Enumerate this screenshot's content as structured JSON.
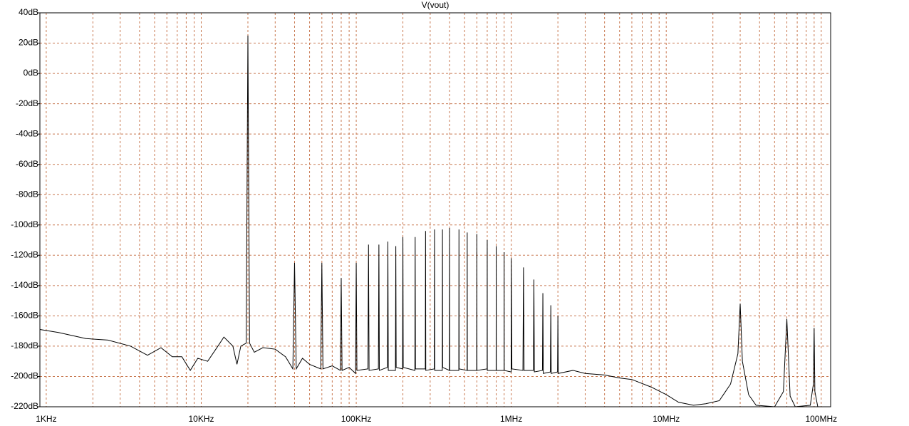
{
  "chart_data": {
    "type": "line",
    "title": "V(vout)",
    "color": "#000000",
    "xscale": "log",
    "grid": true,
    "xlim": [
      910,
      115000000
    ],
    "ylim": [
      -220,
      40
    ],
    "xticks": [
      {
        "value": 1000,
        "label": "1KHz"
      },
      {
        "value": 10000,
        "label": "10KHz"
      },
      {
        "value": 100000,
        "label": "100KHz"
      },
      {
        "value": 1000000,
        "label": "1MHz"
      },
      {
        "value": 10000000,
        "label": "10MHz"
      },
      {
        "value": 100000000,
        "label": "100MHz"
      }
    ],
    "x_minor_ticks": [
      2000,
      3000,
      4000,
      5000,
      6000,
      7000,
      8000,
      9000,
      20000,
      30000,
      40000,
      50000,
      60000,
      70000,
      80000,
      90000,
      200000,
      300000,
      400000,
      500000,
      600000,
      700000,
      800000,
      900000,
      2000000,
      3000000,
      4000000,
      5000000,
      6000000,
      7000000,
      8000000,
      9000000,
      20000000,
      30000000,
      40000000,
      50000000,
      60000000,
      70000000,
      80000000,
      90000000
    ],
    "yticks": [
      {
        "value": 40,
        "label": "40dB"
      },
      {
        "value": 20,
        "label": "20dB"
      },
      {
        "value": 0,
        "label": "0dB"
      },
      {
        "value": -20,
        "label": "-20dB"
      },
      {
        "value": -40,
        "label": "-40dB"
      },
      {
        "value": -60,
        "label": "-60dB"
      },
      {
        "value": -80,
        "label": "-80dB"
      },
      {
        "value": -100,
        "label": "-100dB"
      },
      {
        "value": -120,
        "label": "-120dB"
      },
      {
        "value": -140,
        "label": "-140dB"
      },
      {
        "value": -160,
        "label": "-160dB"
      },
      {
        "value": -180,
        "label": "-180dB"
      },
      {
        "value": -200,
        "label": "-200dB"
      },
      {
        "value": -220,
        "label": "-220dB"
      }
    ],
    "x": [
      910,
      1200,
      1800,
      2500,
      3500,
      4500,
      5500,
      6500,
      7500,
      8500,
      9500,
      11000,
      13000,
      14000,
      16000,
      17000,
      18000,
      19500,
      20000,
      20500,
      22000,
      25000,
      30000,
      35000,
      39000,
      40000,
      41000,
      45000,
      50000,
      59000,
      60000,
      61000,
      70000,
      79000,
      80000,
      81000,
      90000,
      99000,
      100000,
      101000,
      119000,
      120000,
      121000,
      139000,
      140000,
      141000,
      159000,
      160000,
      161000,
      179000,
      180000,
      181000,
      199000,
      200000,
      201000,
      239000,
      240000,
      241000,
      279000,
      280000,
      281000,
      319000,
      320000,
      321000,
      359000,
      360000,
      361000,
      399000,
      400000,
      401000,
      459000,
      460000,
      461000,
      519000,
      520000,
      521000,
      599000,
      600000,
      601000,
      699000,
      700000,
      701000,
      799000,
      800000,
      801000,
      899000,
      900000,
      901000,
      999000,
      1000000,
      1010000,
      1190000,
      1200000,
      1210000,
      1390000,
      1400000,
      1410000,
      1590000,
      1600000,
      1610000,
      1790000,
      1800000,
      1810000,
      1990000,
      2000000,
      2010000,
      2500000,
      3000000,
      4000000,
      5000000,
      6000000,
      8000000,
      10000000,
      12000000,
      15000000,
      18000000,
      22000000,
      26000000,
      29000000,
      30000000,
      31000000,
      34000000,
      38000000,
      50000000,
      57000000,
      60000000,
      63000000,
      68000000,
      85000000,
      89000000,
      90000000,
      91000000,
      95000000,
      114000000
    ],
    "values": [
      -169,
      -171,
      -175,
      -176,
      -180,
      -186,
      -181,
      -187,
      -187,
      -196,
      -188,
      -190,
      -179,
      -174,
      -180,
      -192,
      -180,
      -178,
      25,
      -178,
      -184,
      -181,
      -182,
      -187,
      -195,
      -125,
      -195,
      -188,
      -192,
      -195,
      -125,
      -195,
      -193,
      -196,
      -135,
      -196,
      -194,
      -198,
      -125,
      -196,
      -195,
      -113,
      -196,
      -195,
      -113,
      -196,
      -194,
      -111,
      -196,
      -196,
      -114,
      -194,
      -195,
      -108,
      -194,
      -196,
      -108,
      -195,
      -195,
      -104,
      -196,
      -195,
      -103,
      -196,
      -196,
      -103,
      -194,
      -196,
      -102,
      -196,
      -196,
      -103,
      -195,
      -196,
      -105,
      -196,
      -196,
      -106,
      -196,
      -195,
      -110,
      -196,
      -196,
      -114,
      -196,
      -196,
      -118,
      -196,
      -197,
      -122,
      -195,
      -196,
      -128,
      -196,
      -196,
      -136,
      -197,
      -196,
      -145,
      -198,
      -197,
      -153,
      -198,
      -197,
      -160,
      -198,
      -196,
      -198,
      -199,
      -201,
      -202,
      -207,
      -212,
      -217,
      -219,
      -218,
      -216,
      -205,
      -185,
      -152,
      -190,
      -212,
      -219,
      -220,
      -210,
      -162,
      -213,
      -220,
      -219,
      -205,
      -168,
      -210,
      -220,
      -220
    ]
  }
}
